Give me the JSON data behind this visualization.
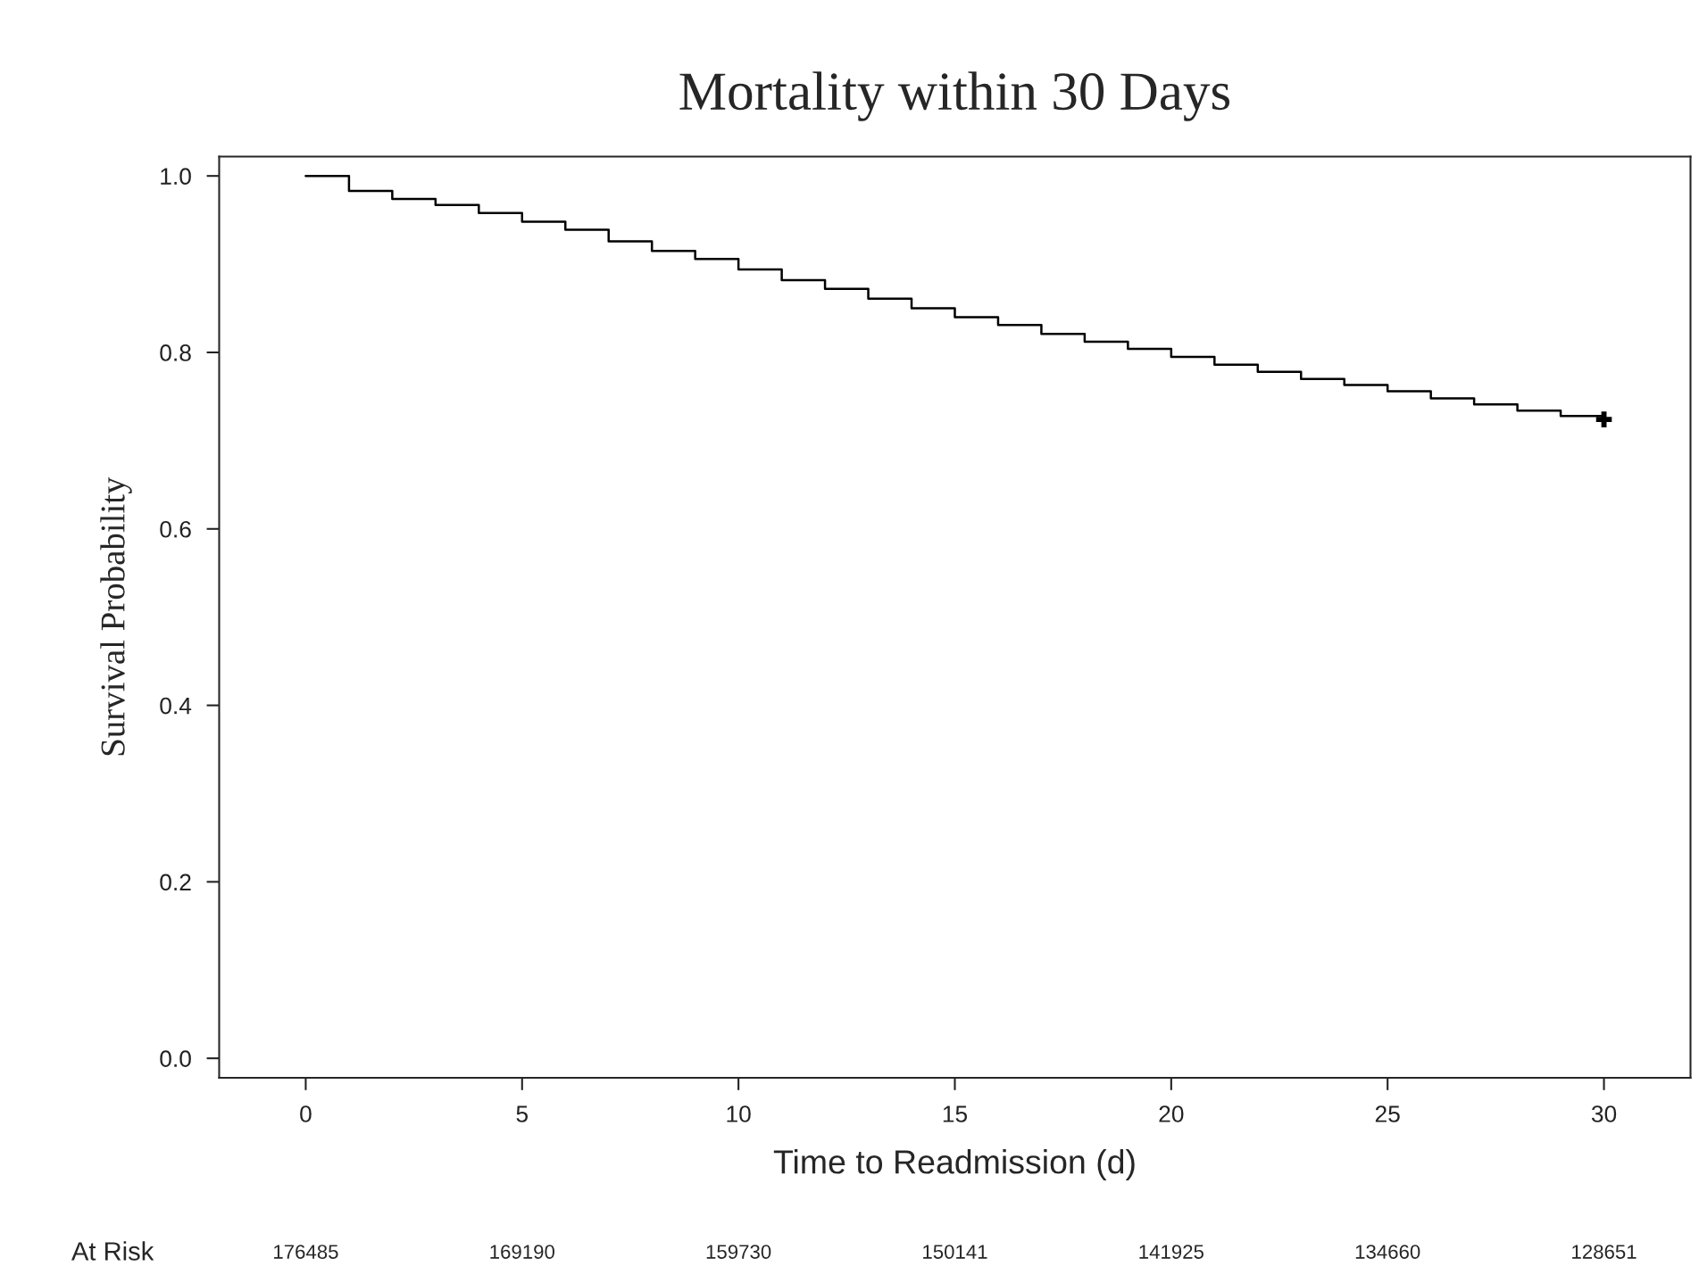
{
  "chart_data": {
    "type": "step",
    "title": "Mortality within 30 Days",
    "xlabel": "Time to Readmission (d)",
    "ylabel": "Survival Probability",
    "series": [
      {
        "color": "#000000",
        "x": [
          0,
          1,
          2,
          3,
          4,
          5,
          6,
          7,
          8,
          9,
          10,
          11,
          12,
          13,
          14,
          15,
          16,
          17,
          18,
          19,
          20,
          21,
          22,
          23,
          24,
          25,
          26,
          27,
          28,
          29,
          30
        ],
        "values": [
          1.0,
          0.983,
          0.974,
          0.967,
          0.958,
          0.948,
          0.939,
          0.926,
          0.915,
          0.906,
          0.894,
          0.882,
          0.872,
          0.861,
          0.85,
          0.84,
          0.831,
          0.821,
          0.812,
          0.804,
          0.795,
          0.786,
          0.778,
          0.77,
          0.763,
          0.756,
          0.748,
          0.741,
          0.734,
          0.728,
          0.728
        ]
      },
      {
        "type": "scatter",
        "color": "#000000",
        "marker": "cross",
        "x": [
          30
        ],
        "values": [
          0.724
        ]
      }
    ],
    "xlim": [
      -2,
      32
    ],
    "ylim": [
      -0.022,
      1.022
    ],
    "xticks": [
      0,
      5,
      10,
      15,
      20,
      25,
      30
    ],
    "yticks": [
      {
        "value": 0,
        "label": "0.0"
      },
      {
        "value": 0.2,
        "label": "0.2"
      },
      {
        "value": 0.4,
        "label": "0.4"
      },
      {
        "value": 0.6,
        "label": "0.6"
      },
      {
        "value": 0.8,
        "label": "0.8"
      },
      {
        "value": 1,
        "label": "1.0"
      }
    ],
    "grid": false,
    "legend": false,
    "annotations": [
      "At Risk",
      "176485",
      "169190",
      "159730",
      "150141",
      "141925",
      "134660",
      "128651"
    ]
  }
}
